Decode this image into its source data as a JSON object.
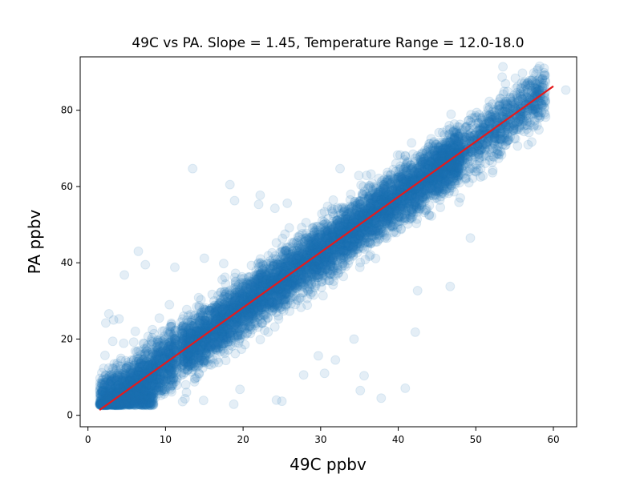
{
  "chart_data": {
    "type": "scatter",
    "title": "49C vs PA.   Slope = 1.45,   Temperature Range = 12.0-18.0",
    "xlabel": "49C ppbv",
    "ylabel": "PA ppbv",
    "xlim": [
      -1,
      63
    ],
    "ylim": [
      -3,
      94
    ],
    "xticks": [
      0,
      10,
      20,
      30,
      40,
      50,
      60
    ],
    "yticks": [
      0,
      20,
      40,
      60,
      80
    ],
    "grid": false,
    "legend": "none",
    "colors": {
      "points": "#1f77b4",
      "fit_line": "#e41a1c"
    },
    "point_alpha": 0.12,
    "fit_line": {
      "slope": 1.45,
      "x": [
        1.5,
        60
      ],
      "y": [
        1.4,
        86.3
      ]
    },
    "series": [
      {
        "points_approx": {
          "x_range": [
            1.5,
            60
          ],
          "y_intercept": -0.8,
          "slope": 1.45,
          "count": 9000
        },
        "outliers": [
          [
            13.5,
            64.7
          ],
          [
            18.3,
            60.5
          ],
          [
            18.9,
            56.3
          ],
          [
            22.2,
            57.7
          ],
          [
            22.0,
            55.3
          ],
          [
            24.1,
            54.3
          ],
          [
            25.7,
            55.6
          ],
          [
            6.5,
            43.0
          ],
          [
            7.4,
            39.5
          ],
          [
            11.2,
            38.8
          ],
          [
            4.7,
            36.8
          ],
          [
            15.0,
            41.2
          ],
          [
            17.5,
            39.8
          ],
          [
            2.7,
            26.6
          ],
          [
            3.3,
            25.0
          ],
          [
            2.3,
            24.2
          ],
          [
            4.0,
            25.3
          ],
          [
            6.1,
            22.0
          ],
          [
            3.2,
            19.4
          ],
          [
            4.6,
            18.9
          ],
          [
            2.2,
            15.7
          ],
          [
            3.8,
            13.1
          ],
          [
            6.8,
            13.6
          ],
          [
            9.2,
            25.5
          ],
          [
            10.5,
            29.0
          ],
          [
            19.6,
            6.8
          ],
          [
            18.8,
            2.9
          ],
          [
            24.3,
            4.0
          ],
          [
            25.0,
            3.7
          ],
          [
            34.3,
            20.0
          ],
          [
            35.6,
            10.4
          ],
          [
            37.8,
            4.5
          ],
          [
            40.9,
            7.1
          ],
          [
            46.7,
            33.8
          ],
          [
            42.2,
            21.8
          ],
          [
            42.5,
            32.7
          ],
          [
            35.1,
            6.5
          ],
          [
            32.5,
            64.7
          ],
          [
            49.3,
            46.5
          ],
          [
            53.5,
            91.4
          ],
          [
            53.4,
            88.7
          ],
          [
            55.8,
            85.9
          ],
          [
            58.2,
            84.6
          ],
          [
            61.6,
            85.3
          ],
          [
            29.7,
            15.6
          ],
          [
            31.9,
            14.5
          ],
          [
            27.8,
            10.6
          ],
          [
            30.5,
            11.0
          ],
          [
            12.2,
            3.6
          ],
          [
            14.9,
            3.9
          ]
        ]
      }
    ]
  }
}
